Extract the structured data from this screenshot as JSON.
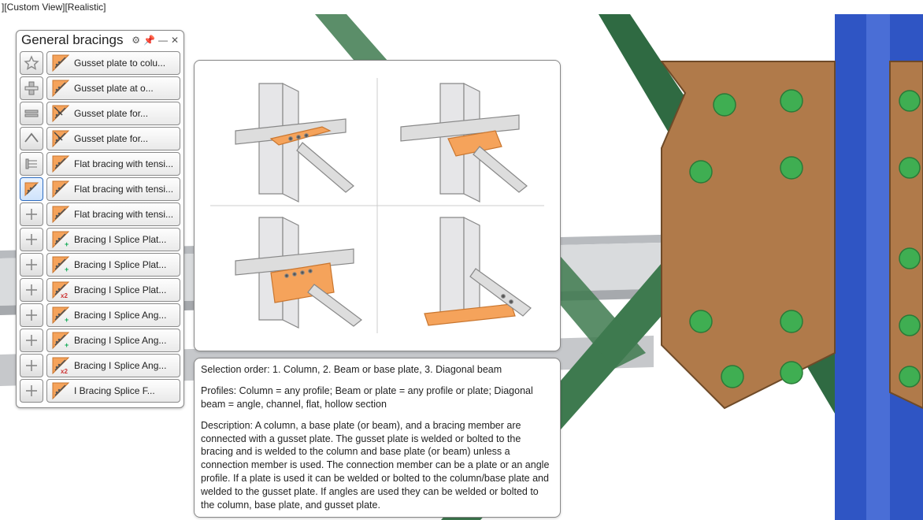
{
  "topbar": {
    "text": "][Custom View][Realistic]"
  },
  "panel": {
    "title": "General bracings",
    "header_icons": [
      "gear-icon",
      "pin-icon",
      "minimize-icon",
      "close-icon"
    ]
  },
  "categories": [
    {
      "name": "favorites"
    },
    {
      "name": "columns"
    },
    {
      "name": "beams"
    },
    {
      "name": "roof"
    },
    {
      "name": "plates"
    },
    {
      "name": "bracings",
      "selected": true
    },
    {
      "name": "misc1"
    },
    {
      "name": "misc2"
    },
    {
      "name": "misc3"
    },
    {
      "name": "misc4"
    },
    {
      "name": "misc5"
    },
    {
      "name": "misc6"
    },
    {
      "name": "misc7"
    },
    {
      "name": "misc8"
    }
  ],
  "items": [
    {
      "label": "Gusset plate to colu...",
      "icon": "simple"
    },
    {
      "label": "Gusset plate at o...",
      "icon": "simple"
    },
    {
      "label": "Gusset plate for...",
      "icon": "double"
    },
    {
      "label": "Gusset plate for...",
      "icon": "double"
    },
    {
      "label": "Flat bracing with tensi...",
      "icon": "simple"
    },
    {
      "label": "Flat bracing with tensi...",
      "icon": "simple"
    },
    {
      "label": "Flat bracing with tensi...",
      "icon": "simple"
    },
    {
      "label": "Bracing I Splice Plat...",
      "icon": "plus"
    },
    {
      "label": "Bracing I Splice Plat...",
      "icon": "plus"
    },
    {
      "label": "Bracing I Splice Plat...",
      "icon": "x2"
    },
    {
      "label": "Bracing I Splice Ang...",
      "icon": "plus"
    },
    {
      "label": "Bracing I Splice Ang...",
      "icon": "plus"
    },
    {
      "label": "Bracing I Splice Ang...",
      "icon": "x2"
    },
    {
      "label": "I Bracing Splice F...",
      "icon": "simple"
    }
  ],
  "desc": {
    "selection_order": "Selection order: 1. Column, 2. Beam or base plate, 3. Diagonal beam",
    "profiles": "Profiles: Column = any profile; Beam or plate = any profile or plate; Diagonal beam = angle, channel, flat, hollow section",
    "description": "Description: A column, a base plate (or beam), and a bracing member are connected with a gusset plate.  The gusset plate is welded or bolted to the bracing and is welded to the column and base plate (or beam) unless a connection member is used.  The connection member can be a plate or an angle profile.  If a plate is used it can be welded or bolted to the column/base plate and welded to the gusset plate.  If angles are used they can be welded or bolted to the column, base plate, and gusset plate."
  },
  "colors": {
    "orange": "#f5a35b",
    "orange_dark": "#d97a2a",
    "steel_light": "#e8e8ea",
    "steel_mid": "#c5c7ca",
    "steel_dark": "#9aa0a6",
    "col_blue": "#2f55c4",
    "col_blue_light": "#5c7ae0",
    "gusset": "#b07a4a",
    "gusset_edge": "#6e4a28",
    "brace_green": "#3e7a4f",
    "brace_green_dark": "#2a5a38",
    "bolt_green": "#3fae52",
    "bolt_green_dark": "#2a7a38",
    "beam_grey": "#bfc2c6"
  },
  "preview_grid": {
    "rows": 2,
    "cols": 2
  }
}
